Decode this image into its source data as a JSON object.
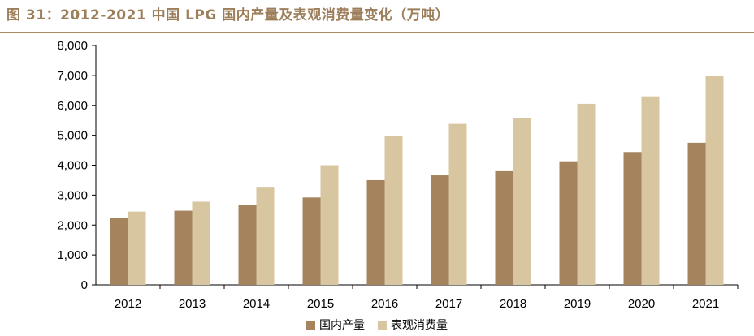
{
  "title": "图 31：2012-2021 中国 LPG 国内产量及表观消费量变化（万吨）",
  "chart_data": {
    "type": "bar",
    "categories": [
      "2012",
      "2013",
      "2014",
      "2015",
      "2016",
      "2017",
      "2018",
      "2019",
      "2020",
      "2021"
    ],
    "series": [
      {
        "name": "国内产量",
        "color": "#a4835d",
        "values": [
          2250,
          2480,
          2680,
          2920,
          3500,
          3660,
          3800,
          4130,
          4440,
          4750
        ]
      },
      {
        "name": "表观消费量",
        "color": "#d7c6a0",
        "values": [
          2450,
          2780,
          3250,
          4000,
          4980,
          5380,
          5580,
          6050,
          6300,
          6970
        ]
      }
    ],
    "ylim": [
      0,
      8000
    ],
    "yticks": [
      "0",
      "1,000",
      "2,000",
      "3,000",
      "4,000",
      "5,000",
      "6,000",
      "7,000",
      "8,000"
    ],
    "ytick_values": [
      0,
      1000,
      2000,
      3000,
      4000,
      5000,
      6000,
      7000,
      8000
    ],
    "grid": false,
    "legend_position": "bottom"
  }
}
